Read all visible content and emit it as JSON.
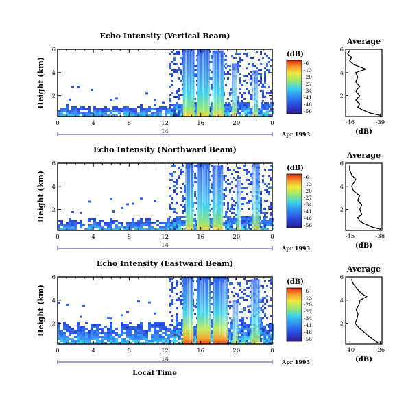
{
  "chart_data": [
    {
      "type": "heatmap",
      "title": "Echo Intensity (Vertical Beam)",
      "ylabel": "Height (km)",
      "y_ticks": [
        "6",
        "4",
        "2"
      ],
      "x_ticks": [
        "0",
        "4",
        "8",
        "12",
        "16",
        "20",
        "0"
      ],
      "xlim": [
        0,
        24
      ],
      "ylim": [
        0.2,
        6
      ],
      "date_day": "14",
      "date_label": "Apr 1993",
      "colorbar": {
        "label": "(dB)",
        "ticks": [
          "-6",
          "-13",
          "-20",
          "-27",
          "-34",
          "-41",
          "-48",
          "-56"
        ]
      },
      "columns": [
        {
          "x": [
            14,
            15.3
          ],
          "top": 6.0,
          "peak": 0.95
        },
        {
          "x": [
            15.6,
            17.0
          ],
          "top": 6.0,
          "peak": 1.0
        },
        {
          "x": [
            17.3,
            18.6
          ],
          "top": 5.9,
          "peak": 0.9
        },
        {
          "x": [
            19.5,
            20.1
          ],
          "top": 4.8,
          "peak": 0.5
        },
        {
          "x": [
            21.8,
            22.4
          ],
          "top": 4.2,
          "peak": 0.4
        }
      ],
      "base_layer_km": 0.9,
      "average_profile": {
        "title": "Average",
        "xlabel": "(dB)",
        "x_ticks": [
          "-46",
          "-39"
        ],
        "xlim": [
          -47,
          -38
        ],
        "y_ticks": [
          "2",
          "4",
          "6"
        ],
        "heights": [
          0.3,
          0.5,
          0.8,
          1.0,
          1.3,
          1.6,
          2.0,
          2.4,
          2.8,
          3.2,
          3.6,
          4.0,
          4.3,
          4.5,
          4.7,
          5.0,
          5.3,
          5.6,
          5.9
        ],
        "values": [
          -38.5,
          -41.0,
          -43.0,
          -44.0,
          -43.5,
          -44.5,
          -43.5,
          -44.5,
          -43.5,
          -44.5,
          -44.0,
          -44.5,
          -42.0,
          -43.5,
          -45.0,
          -46.0,
          -45.5,
          -46.5,
          -46.0
        ]
      }
    },
    {
      "type": "heatmap",
      "title": "Echo Intensity (Northward Beam)",
      "ylabel": "Height (km)",
      "y_ticks": [
        "6",
        "4",
        "2"
      ],
      "x_ticks": [
        "0",
        "4",
        "8",
        "12",
        "16",
        "20",
        "0"
      ],
      "xlim": [
        0,
        24
      ],
      "ylim": [
        0.2,
        6
      ],
      "date_day": "14",
      "date_label": "Apr 1993",
      "colorbar": {
        "label": "(dB)",
        "ticks": [
          "-6",
          "-13",
          "-20",
          "-27",
          "-34",
          "-41",
          "-48",
          "-56"
        ]
      },
      "columns": [
        {
          "x": [
            14.3,
            15.2
          ],
          "top": 6.0,
          "peak": 0.9
        },
        {
          "x": [
            15.6,
            17.0
          ],
          "top": 6.0,
          "peak": 0.95
        },
        {
          "x": [
            17.3,
            18.5
          ],
          "top": 5.8,
          "peak": 0.85
        },
        {
          "x": [
            20.0,
            20.5
          ],
          "top": 4.5,
          "peak": 0.4
        },
        {
          "x": [
            21.8,
            22.6
          ],
          "top": 6.0,
          "peak": 0.5
        }
      ],
      "base_layer_km": 0.9,
      "average_profile": {
        "title": "Average",
        "xlabel": "(dB)",
        "x_ticks": [
          "-45",
          "-38"
        ],
        "xlim": [
          -46.5,
          -37.5
        ],
        "y_ticks": [
          "2",
          "4",
          "6"
        ],
        "heights": [
          0.3,
          0.5,
          0.8,
          1.0,
          1.3,
          1.6,
          2.0,
          2.4,
          2.8,
          3.2,
          3.6,
          4.0,
          4.3,
          4.6,
          5.0,
          5.4,
          5.8
        ],
        "values": [
          -38.0,
          -40.0,
          -42.0,
          -43.0,
          -43.5,
          -42.5,
          -43.0,
          -42.5,
          -43.5,
          -43.0,
          -44.5,
          -45.0,
          -44.5,
          -44.0,
          -45.0,
          -45.5,
          -45.5
        ]
      }
    },
    {
      "type": "heatmap",
      "title": "Echo Intensity (Eastward Beam)",
      "ylabel": "Height (km)",
      "y_ticks": [
        "6",
        "4",
        "2"
      ],
      "x_ticks": [
        "0",
        "4",
        "8",
        "12",
        "16",
        "20",
        "0"
      ],
      "xlim": [
        0,
        24
      ],
      "ylim": [
        0.2,
        6
      ],
      "date_day": "14",
      "date_label": "Apr 1993",
      "xlabel": "Local Time",
      "colorbar": {
        "label": "(dB)",
        "ticks": [
          "-6",
          "-13",
          "-20",
          "-27",
          "-34",
          "-41",
          "-48",
          "-56"
        ]
      },
      "columns": [
        {
          "x": [
            14.0,
            15.2
          ],
          "top": 6.0,
          "peak": 0.95
        },
        {
          "x": [
            15.6,
            17.1
          ],
          "top": 6.0,
          "peak": 1.0
        },
        {
          "x": [
            17.4,
            19.0
          ],
          "top": 6.0,
          "peak": 0.95
        },
        {
          "x": [
            19.6,
            20.2
          ],
          "top": 4.0,
          "peak": 0.5
        },
        {
          "x": [
            21.6,
            22.6
          ],
          "top": 5.8,
          "peak": 0.5
        }
      ],
      "base_layer_km": 1.7,
      "average_profile": {
        "title": "Average",
        "xlabel": "(dB)",
        "x_ticks": [
          "-40",
          "-26"
        ],
        "xlim": [
          -43,
          -24
        ],
        "y_ticks": [
          "2",
          "4",
          "6"
        ],
        "heights": [
          0.3,
          0.6,
          0.9,
          1.2,
          1.6,
          2.0,
          2.4,
          2.8,
          3.2,
          3.6,
          4.0,
          4.3,
          4.6,
          5.0,
          5.4,
          5.8
        ],
        "values": [
          -26.0,
          -28.5,
          -31.0,
          -33.0,
          -36.0,
          -38.0,
          -37.0,
          -36.5,
          -37.5,
          -36.0,
          -35.5,
          -32.0,
          -35.0,
          -37.0,
          -39.0,
          -40.0
        ]
      }
    }
  ]
}
